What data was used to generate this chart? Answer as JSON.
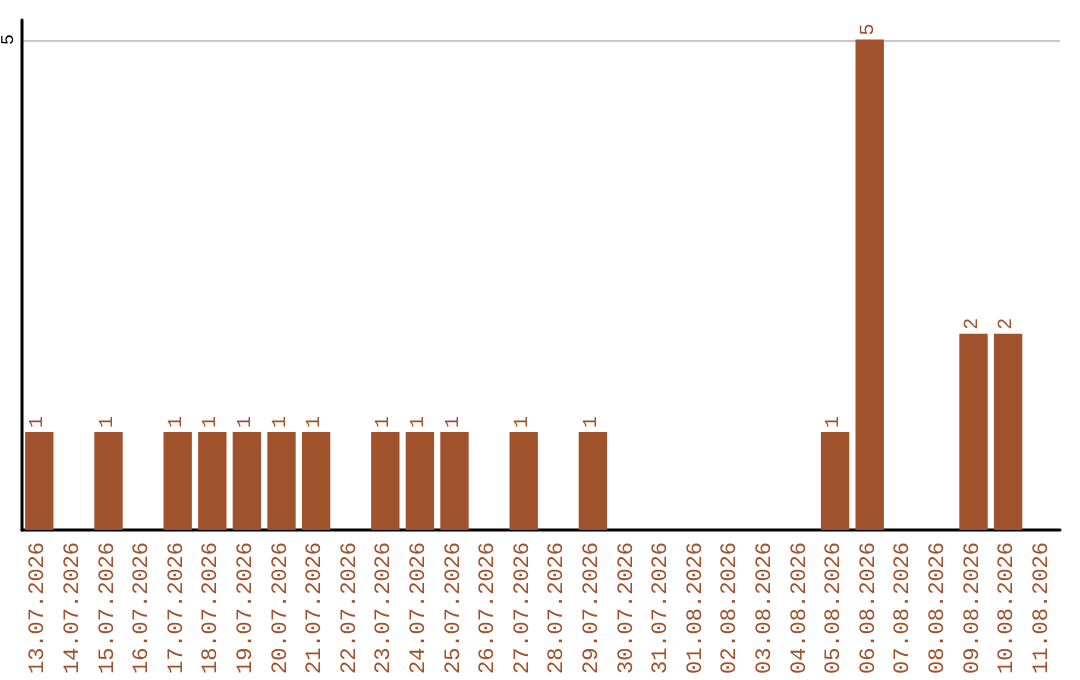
{
  "chart_data": {
    "type": "bar",
    "categories": [
      "13.07.2026",
      "14.07.2026",
      "15.07.2026",
      "16.07.2026",
      "17.07.2026",
      "18.07.2026",
      "19.07.2026",
      "20.07.2026",
      "21.07.2026",
      "22.07.2026",
      "23.07.2026",
      "24.07.2026",
      "25.07.2026",
      "26.07.2026",
      "27.07.2026",
      "28.07.2026",
      "29.07.2026",
      "30.07.2026",
      "31.07.2026",
      "01.08.2026",
      "02.08.2026",
      "03.08.2026",
      "04.08.2026",
      "05.08.2026",
      "06.08.2026",
      "07.08.2026",
      "08.08.2026",
      "09.08.2026",
      "10.08.2026",
      "11.08.2026"
    ],
    "values": [
      1,
      0,
      1,
      0,
      1,
      1,
      1,
      1,
      1,
      0,
      1,
      1,
      1,
      0,
      1,
      0,
      1,
      0,
      0,
      0,
      0,
      0,
      0,
      1,
      5,
      0,
      0,
      2,
      2,
      0
    ],
    "value_labels": [
      "1",
      null,
      "1",
      null,
      "1",
      "1",
      "1",
      "1",
      "1",
      null,
      "1",
      "1",
      "1",
      null,
      "1",
      null,
      "1",
      null,
      null,
      null,
      null,
      null,
      null,
      "1",
      "5",
      null,
      null,
      "2",
      "2",
      null
    ],
    "color": "#a0522d",
    "ylim": [
      0,
      5.2
    ],
    "yticks": [
      5
    ],
    "grid": "y"
  }
}
